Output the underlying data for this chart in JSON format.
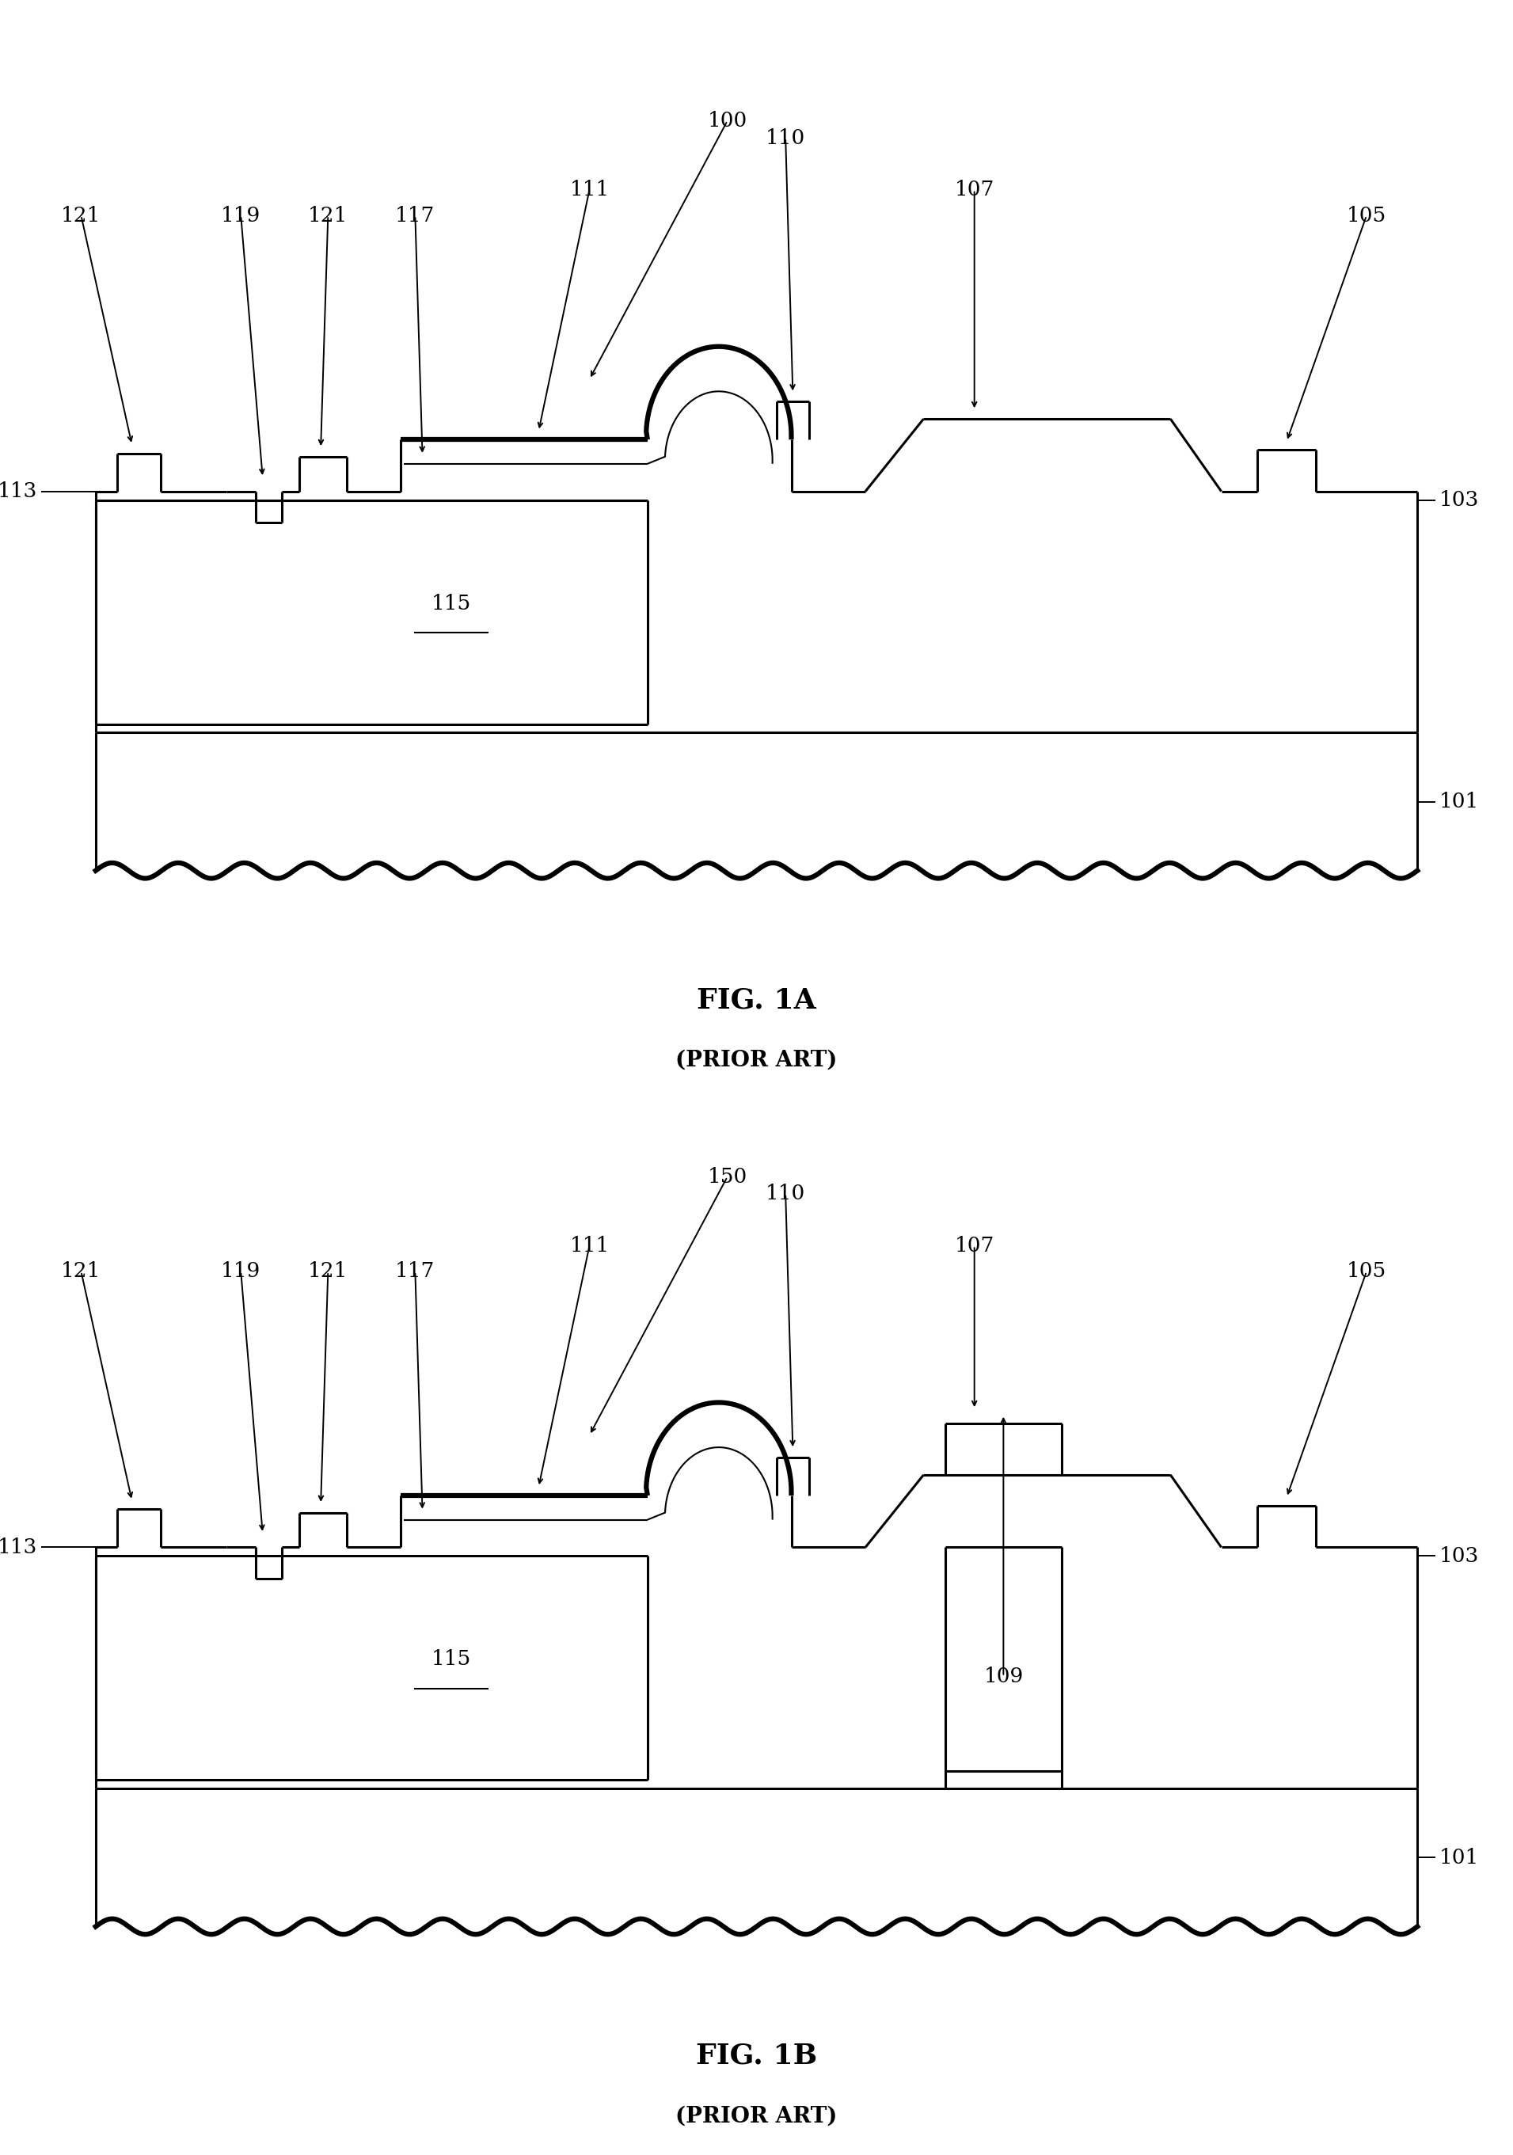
{
  "fig_title_1": "FIG. 1A",
  "fig_subtitle_1": "(PRIOR ART)",
  "fig_title_2": "FIG. 1B",
  "fig_subtitle_2": "(PRIOR ART)",
  "label_100": "100",
  "label_150": "150",
  "label_101": "101",
  "label_103": "103",
  "label_105": "105",
  "label_107": "107",
  "label_109": "109",
  "label_110": "110",
  "label_111": "111",
  "label_113": "113",
  "label_115": "115",
  "label_117": "117",
  "label_119": "119",
  "label_121a": "121",
  "label_121b": "121",
  "lw": 2.2,
  "lw_thick": 4.5,
  "lw_thin": 1.5,
  "bg_color": "#ffffff",
  "line_color": "#000000",
  "fontsize_label": 19,
  "fontsize_title": 26,
  "fontsize_subtitle": 20
}
